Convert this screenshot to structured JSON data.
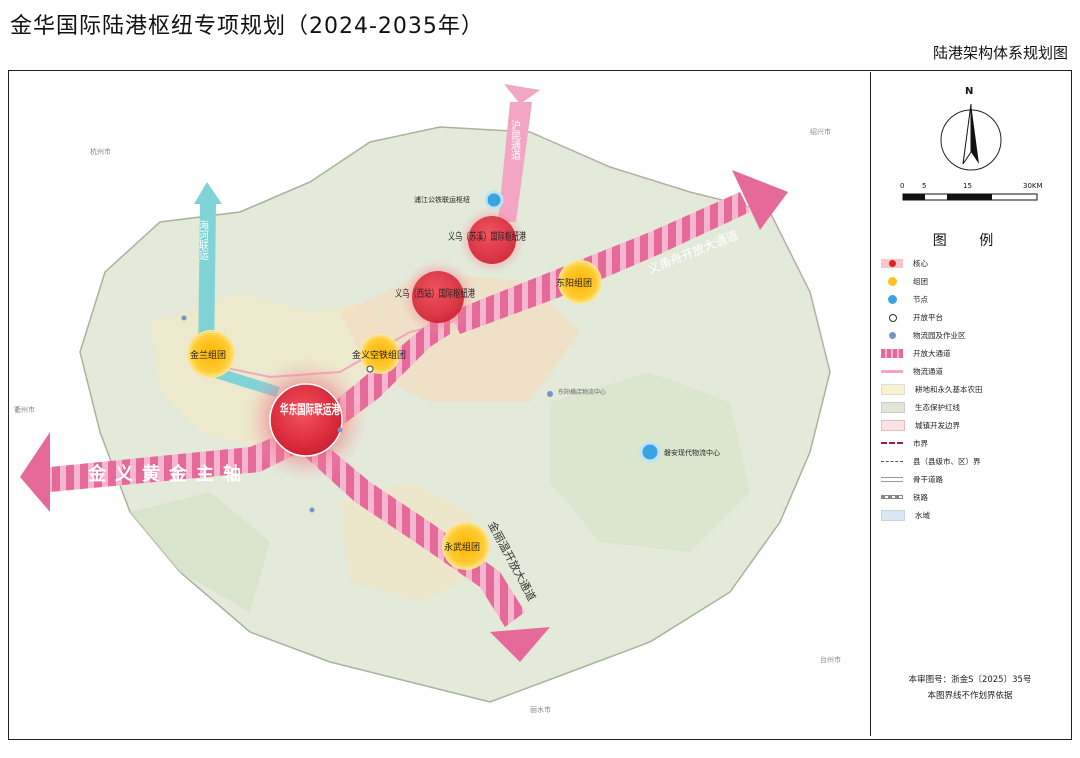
{
  "title": "金华国际陆港枢纽专项规划（2024-2035年）",
  "subtitle": "陆港架构体系规划图",
  "north_label": "N",
  "scale_bar": {
    "ticks": [
      "0",
      "5",
      "15",
      "30KM"
    ]
  },
  "legend": {
    "title": "图 例",
    "items": [
      {
        "label": "核心",
        "icon": "core-circle-icon"
      },
      {
        "label": "组团",
        "icon": "cluster-circle-icon"
      },
      {
        "label": "节点",
        "icon": "node-circle-icon"
      },
      {
        "label": "开放平台",
        "icon": "open-platform-icon"
      },
      {
        "label": "物流园及作业区",
        "icon": "logistics-park-icon"
      },
      {
        "label": "开放大通道",
        "icon": "open-corridor-icon"
      },
      {
        "label": "物流通道",
        "icon": "logistics-channel-icon"
      },
      {
        "label": "耕地和永久基本农田",
        "icon": "farmland-icon"
      },
      {
        "label": "生态保护红线",
        "icon": "eco-redline-icon"
      },
      {
        "label": "城镇开发边界",
        "icon": "urban-boundary-icon"
      },
      {
        "label": "市界",
        "icon": "city-boundary-icon"
      },
      {
        "label": "县（县级市、区）界",
        "icon": "county-boundary-icon"
      },
      {
        "label": "骨干道路",
        "icon": "trunk-road-icon"
      },
      {
        "label": "铁路",
        "icon": "railway-icon"
      },
      {
        "label": "水域",
        "icon": "water-icon"
      }
    ]
  },
  "approval": {
    "line1": "本审图号：浙金S〔2025〕35号",
    "line2": "本图界线不作划界依据"
  },
  "map": {
    "corridors": {
      "main_axis": "金义黄金主轴",
      "yi_yong_zhou": "义甬舟开放大通道",
      "jin_wen": "金丽温开放大通道",
      "hu_kun": "沪昆通道",
      "hai_he": "海河联运"
    },
    "hubs": {
      "huadong": "华东国际联运港",
      "yiwu_suxi": "义乌（苏溪）国际枢纽港",
      "yiwu_xizhan": "义乌（西站）国际枢纽港",
      "jinyi": "金义空铁组团",
      "dongyang": "东阳组团",
      "jinlan": "金兰组团",
      "yongwu": "永武组团"
    },
    "nodes": {
      "pujiang": "浦江公铁联运枢纽",
      "panan": "磐安现代物流中心"
    },
    "places": [
      "杭州市",
      "绍兴市",
      "衢州市",
      "丽水市",
      "台州市",
      "东阳横店物流中心"
    ]
  }
}
